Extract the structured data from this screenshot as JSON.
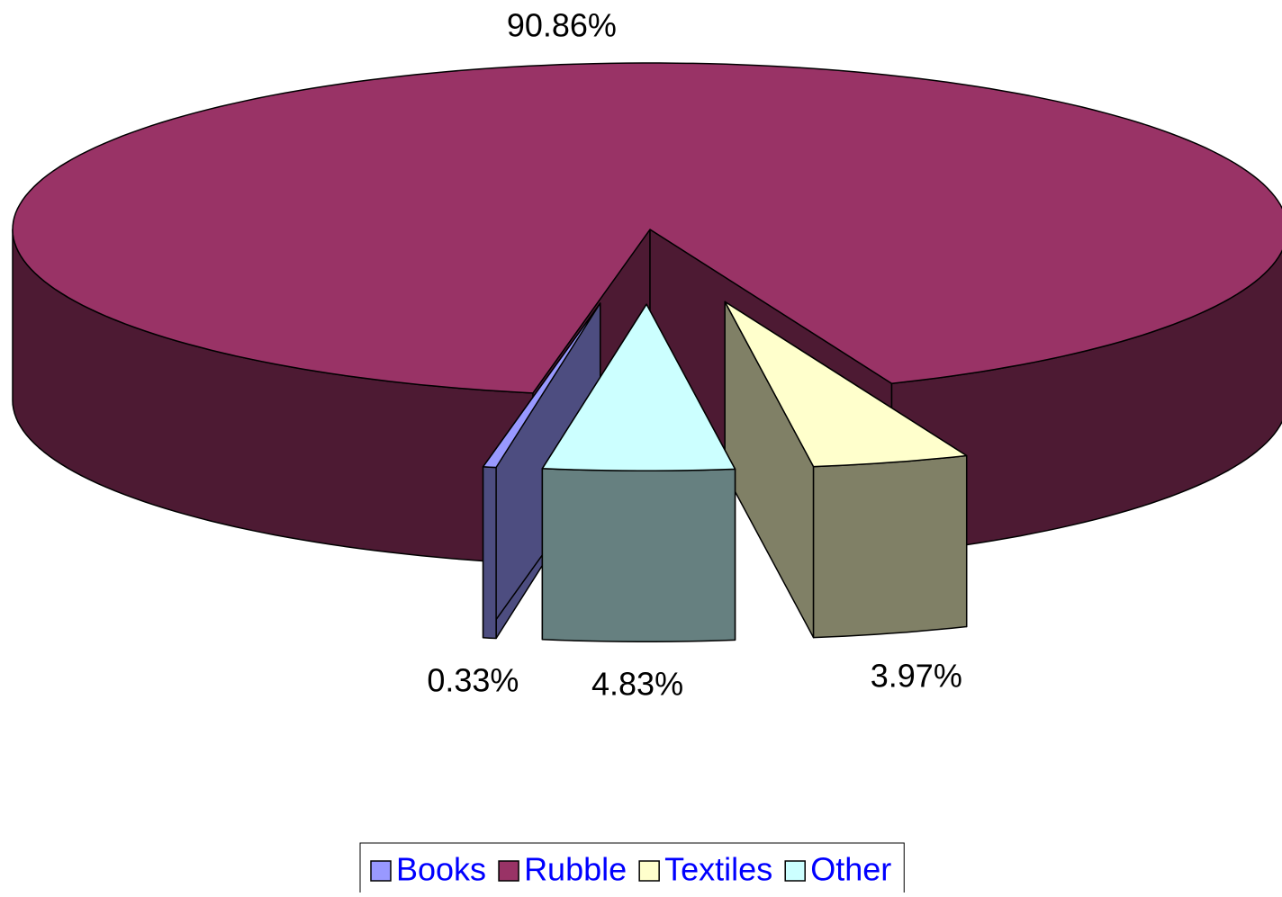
{
  "chart_data": {
    "type": "pie3d",
    "categories": [
      "Books",
      "Rubble",
      "Textiles",
      "Other"
    ],
    "values": [
      0.33,
      90.86,
      3.97,
      4.83
    ],
    "value_labels": [
      "0.33%",
      "90.86%",
      "3.97%",
      "4.83%"
    ],
    "colors": [
      "#9999ff",
      "#993366",
      "#ffffcc",
      "#ccffff"
    ],
    "legend": "bottom"
  }
}
